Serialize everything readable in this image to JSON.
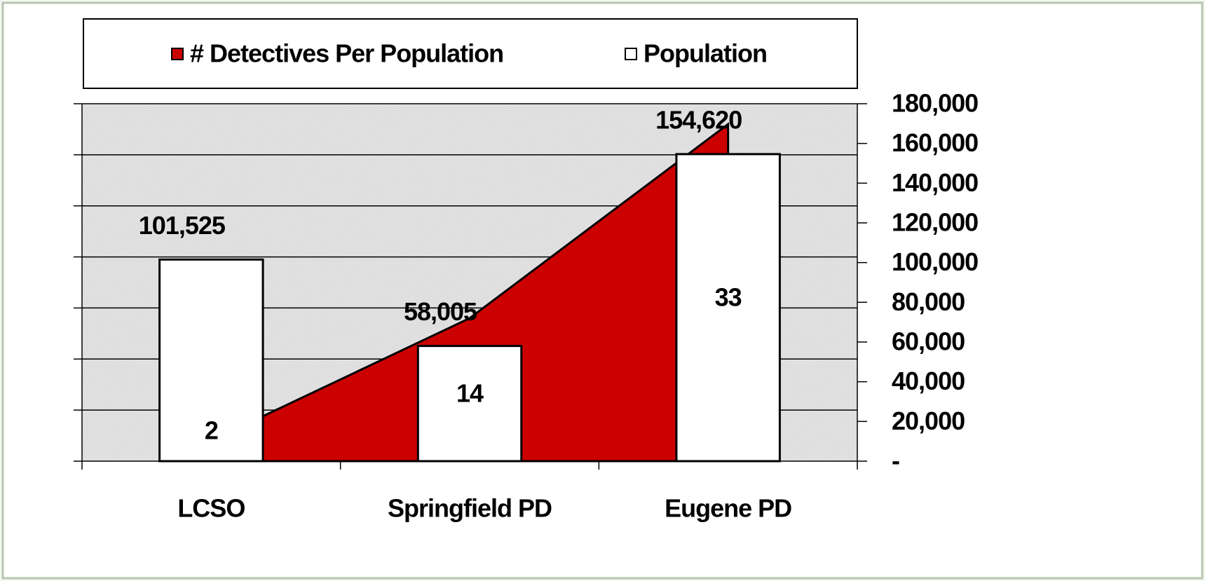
{
  "chart_data": {
    "type": "bar-area",
    "categories": [
      "LCSO",
      "Springfield PD",
      "Eugene PD"
    ],
    "series": [
      {
        "name": "# Detectives Per Population",
        "type": "area",
        "color": "#cc0000",
        "axis": "y",
        "values": [
          2,
          14,
          33
        ]
      },
      {
        "name": "Population",
        "type": "bar",
        "color": "#ffffff",
        "axis": "y2",
        "values": [
          101525,
          58005,
          154620
        ],
        "value_labels": [
          "101,525",
          "58,005",
          "154,620"
        ]
      }
    ],
    "ylim": [
      0,
      35
    ],
    "yticks": [
      0,
      5,
      10,
      15,
      20,
      25,
      30,
      35
    ],
    "y2lim": [
      0,
      180000
    ],
    "y2ticks": [
      {
        "value": 0,
        "label": "-"
      },
      {
        "value": 20000,
        "label": "20,000"
      },
      {
        "value": 40000,
        "label": "40,000"
      },
      {
        "value": 60000,
        "label": "60,000"
      },
      {
        "value": 80000,
        "label": "80,000"
      },
      {
        "value": 100000,
        "label": "100,000"
      },
      {
        "value": 120000,
        "label": "120,000"
      },
      {
        "value": 140000,
        "label": "140,000"
      },
      {
        "value": 160000,
        "label": "160,000"
      },
      {
        "value": 180000,
        "label": "180,000"
      }
    ],
    "grid": true,
    "legend": "top"
  }
}
